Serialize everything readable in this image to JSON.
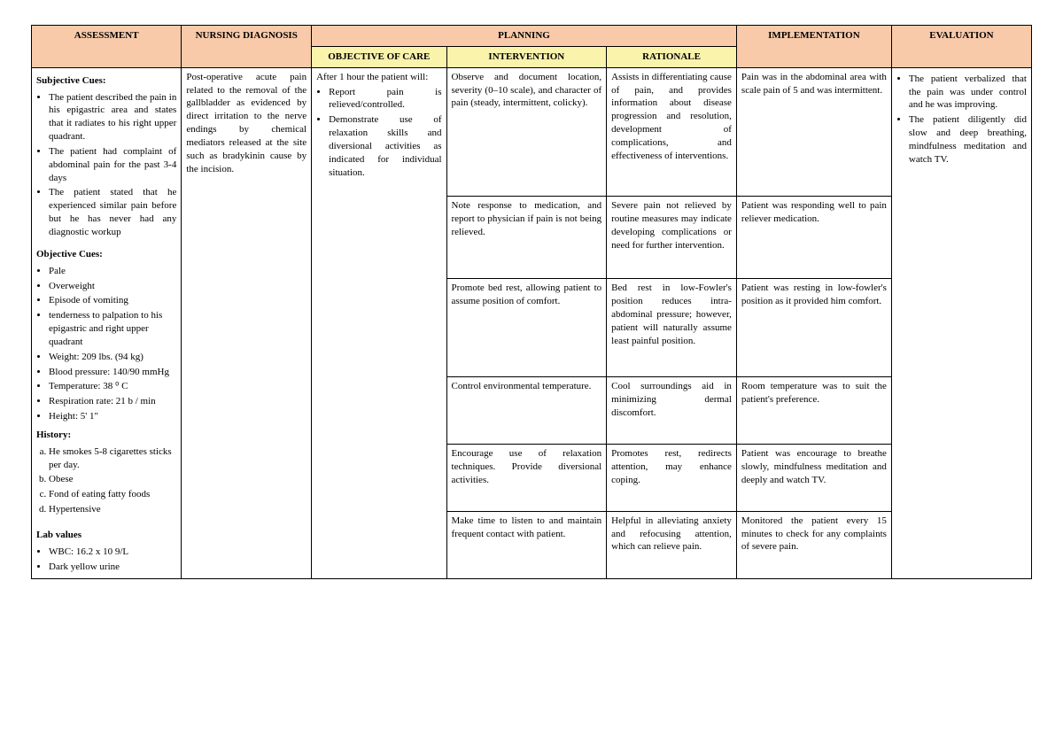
{
  "headers": {
    "assessment": "ASSESSMENT",
    "diagnosis": "NURSING DIAGNOSIS",
    "planning": "PLANNING",
    "objective": "OBJECTIVE OF CARE",
    "intervention": "INTERVENTION",
    "rationale": "RATIONALE",
    "implementation": "IMPLEMENTATION",
    "evaluation": "EVALUATION"
  },
  "assessment": {
    "subjective_title": "Subjective Cues:",
    "subjective": [
      "The patient described the pain in his epigastric area and states that it radiates to his right upper quadrant.",
      "The patient had complaint of abdominal pain for the past 3-4 days",
      "The patient stated that he experienced similar pain before but he has never had any diagnostic workup"
    ],
    "objective_title": "Objective Cues:",
    "objective": [
      "Pale",
      "Overweight",
      "Episode of vomiting",
      "tenderness to palpation to his epigastric and right upper quadrant",
      "Weight: 209 lbs. (94 kg)",
      "Blood pressure: 140/90 mmHg",
      "Temperature: 38 ⁰ C",
      "Respiration rate: 21 b / min",
      "Height: 5' 1\""
    ],
    "history_title": "History:",
    "history": [
      "He smokes 5-8 cigarettes sticks per day.",
      "Obese",
      "Fond of eating fatty foods",
      "Hypertensive"
    ],
    "lab_title": "Lab values",
    "lab": [
      "WBC: 16.2 x 10 9/L",
      "Dark yellow urine"
    ]
  },
  "diagnosis": "Post-operative acute pain related to the removal of the gallbladder as evidenced by direct irritation to the nerve endings by chemical mediators released at the site such as bradykinin cause by the incision.",
  "objective_care": {
    "lead": "After 1 hour the patient will:",
    "items": [
      "Report pain is relieved/controlled.",
      "Demonstrate use of relaxation skills and diversional activities as indicated for individual situation."
    ]
  },
  "rows": [
    {
      "intervention": "Observe and document location, severity (0–10 scale), and character of pain (steady, intermittent, colicky).",
      "rationale": "Assists in differentiating cause of pain, and provides information about disease progression and resolution, development of complications, and effectiveness of interventions.",
      "implementation": "Pain was in the abdominal area with scale pain of 5 and was intermittent."
    },
    {
      "intervention": "Note response to medication, and report to physician if pain is not being relieved.",
      "rationale": "Severe pain not relieved by routine measures may indicate developing complications or need for further intervention.",
      "implementation": "Patient was responding well to pain reliever medication."
    },
    {
      "intervention": "Promote bed rest, allowing patient to assume position of comfort.",
      "rationale": "Bed rest in low-Fowler's position reduces intra-abdominal pressure; however, patient will naturally assume least painful position.",
      "implementation": "Patient was resting in low-fowler's position as it provided him comfort."
    },
    {
      "intervention": "Control environmental temperature.",
      "rationale": "Cool surroundings aid in minimizing dermal discomfort.",
      "implementation": "Room temperature was to suit the patient's preference."
    },
    {
      "intervention": "Encourage use of relaxation techniques. Provide diversional activities.",
      "rationale": "Promotes rest, redirects attention, may enhance coping.",
      "implementation": "Patient was encourage to breathe slowly, mindfulness meditation and deeply and watch TV."
    },
    {
      "intervention": "Make time to listen to and maintain frequent contact with patient.",
      "rationale": "Helpful in alleviating anxiety and refocusing attention, which can relieve pain.",
      "implementation": "Monitored the patient every 15 minutes to check for any complaints of severe pain."
    }
  ],
  "evaluation": [
    "The patient verbalized that the pain was under control and he was improving.",
    "The patient diligently did slow and deep breathing, mindfulness meditation and watch TV."
  ]
}
